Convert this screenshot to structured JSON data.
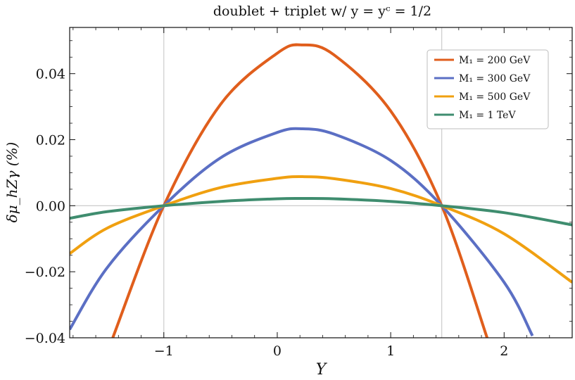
{
  "chart_data": {
    "type": "line",
    "title": "doublet + triplet w/ y = yᶜ = 1/2",
    "xlabel": "Y",
    "ylabel": "δμ_hZγ (%)",
    "xlim": [
      -1.83,
      2.6
    ],
    "ylim": [
      -0.04,
      0.054
    ],
    "xticks": [
      -1,
      0,
      1,
      2
    ],
    "xtick_labels": [
      "−1",
      "0",
      "1",
      "2"
    ],
    "yticks": [
      -0.04,
      -0.02,
      0.0,
      0.02,
      0.04
    ],
    "ytick_labels": [
      "−0.04",
      "−0.02",
      "0.00",
      "0.02",
      "0.04"
    ],
    "vertical_guides": [
      -1,
      1.45
    ],
    "horizontal_guides": [
      0
    ],
    "legend_position": "top-right",
    "series": [
      {
        "name": "M₁ = 200 GeV",
        "color": "#e05e1c",
        "x": [
          -1.45,
          -1.0,
          -0.5,
          0.0,
          0.225,
          0.5,
          1.0,
          1.45,
          1.85
        ],
        "y": [
          -0.04,
          0.0,
          0.0307,
          0.0462,
          0.0487,
          0.0457,
          0.0287,
          0.0,
          -0.04
        ]
      },
      {
        "name": "M₁ = 300 GeV",
        "color": "#5b6fc4",
        "x": [
          -1.83,
          -1.5,
          -1.0,
          -0.5,
          0.0,
          0.225,
          0.5,
          1.0,
          1.45,
          2.0,
          2.25
        ],
        "y": [
          -0.0375,
          -0.0188,
          0.0,
          0.0145,
          0.0222,
          0.0233,
          0.0217,
          0.0137,
          0.0,
          -0.0232,
          -0.0394
        ]
      },
      {
        "name": "M₁ = 500 GeV",
        "color": "#f0a010",
        "x": [
          -1.83,
          -1.5,
          -1.0,
          -0.5,
          0.0,
          0.225,
          0.5,
          1.0,
          1.45,
          2.0,
          2.6
        ],
        "y": [
          -0.0145,
          -0.0068,
          0.0,
          0.0055,
          0.0083,
          0.0088,
          0.0082,
          0.0052,
          0.0,
          -0.0085,
          -0.0232
        ]
      },
      {
        "name": "M₁ = 1 TeV",
        "color": "#3f8d6f",
        "x": [
          -1.83,
          -1.5,
          -1.0,
          -0.5,
          0.0,
          0.225,
          0.5,
          1.0,
          1.45,
          2.0,
          2.6
        ],
        "y": [
          -0.0038,
          -0.0018,
          0.0,
          0.0013,
          0.0021,
          0.0022,
          0.0021,
          0.0013,
          0.0,
          -0.0021,
          -0.0058
        ]
      }
    ]
  }
}
